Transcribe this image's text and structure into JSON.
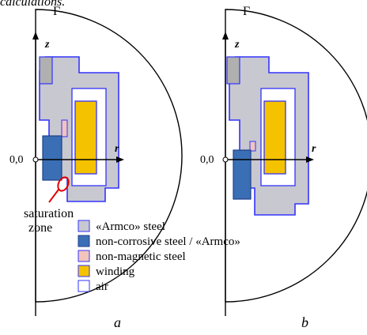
{
  "header_fragment": "calculations.",
  "axes": {
    "z_label": "z",
    "r_label": "r",
    "origin_label": "0,0",
    "boundary_label": "Γ"
  },
  "annotation": {
    "line1": "saturation",
    "line2": "zone"
  },
  "legend": [
    {
      "label": "«Armco» steel",
      "color": "#c8c8d0"
    },
    {
      "label": "non-corrosive steel / «Armco»",
      "color": "#3a6fb5"
    },
    {
      "label": "non-magnetic steel",
      "color": "#f2c4bc"
    },
    {
      "label": "winding",
      "color": "#f5c200"
    },
    {
      "label": "air",
      "color": "#ffffff"
    }
  ],
  "subfigure_labels": [
    "a",
    "b"
  ],
  "colors": {
    "outline": "#3333ff",
    "saturation_marker": "#e00000",
    "axis": "#000000"
  }
}
